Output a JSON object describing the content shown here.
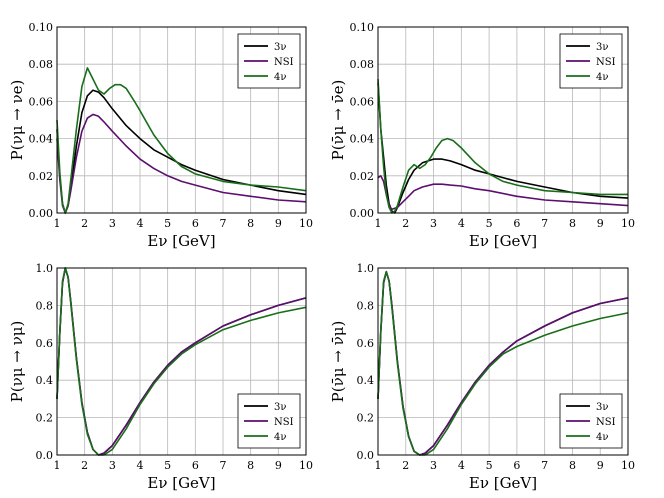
{
  "colors": {
    "3nu": "#000000",
    "NSI": "#5c0f6e",
    "4nu": "#1a6e1a"
  },
  "chart_data": [
    {
      "type": "line",
      "ylabel": "P(νμ → νe)",
      "xlabel": "Eν [GeV]",
      "xlim": [
        1,
        10
      ],
      "ylim": [
        0,
        0.1
      ],
      "xticks": [
        "1",
        "2",
        "3",
        "4",
        "5",
        "6",
        "7",
        "8",
        "9",
        "10"
      ],
      "yticks": [
        "0.00",
        "0.02",
        "0.04",
        "0.06",
        "0.08",
        "0.10"
      ],
      "legend_position": "top-right",
      "series": [
        {
          "name": "3ν",
          "key": "3nu",
          "x": [
            1.0,
            1.1,
            1.2,
            1.3,
            1.4,
            1.5,
            1.7,
            1.9,
            2.1,
            2.3,
            2.5,
            2.7,
            3.0,
            3.5,
            4.0,
            4.5,
            5.0,
            5.5,
            6.0,
            7.0,
            8.0,
            9.0,
            10.0
          ],
          "y": [
            0.045,
            0.02,
            0.005,
            0.0,
            0.004,
            0.014,
            0.036,
            0.054,
            0.063,
            0.066,
            0.065,
            0.062,
            0.056,
            0.047,
            0.04,
            0.034,
            0.03,
            0.026,
            0.023,
            0.018,
            0.015,
            0.012,
            0.01
          ]
        },
        {
          "name": "NSI",
          "key": "NSI",
          "x": [
            1.0,
            1.1,
            1.2,
            1.3,
            1.4,
            1.5,
            1.7,
            1.9,
            2.1,
            2.3,
            2.5,
            2.7,
            3.0,
            3.5,
            4.0,
            4.5,
            5.0,
            5.5,
            6.0,
            7.0,
            8.0,
            9.0,
            10.0
          ],
          "y": [
            0.04,
            0.018,
            0.004,
            0.0,
            0.004,
            0.012,
            0.03,
            0.044,
            0.051,
            0.053,
            0.052,
            0.049,
            0.044,
            0.036,
            0.029,
            0.024,
            0.02,
            0.017,
            0.015,
            0.011,
            0.009,
            0.007,
            0.006
          ]
        },
        {
          "name": "4ν",
          "key": "4nu",
          "x": [
            1.0,
            1.1,
            1.2,
            1.3,
            1.4,
            1.5,
            1.7,
            1.9,
            2.1,
            2.3,
            2.5,
            2.7,
            2.9,
            3.1,
            3.3,
            3.5,
            3.8,
            4.0,
            4.5,
            5.0,
            5.5,
            6.0,
            7.0,
            8.0,
            9.0,
            10.0
          ],
          "y": [
            0.05,
            0.022,
            0.005,
            0.0,
            0.005,
            0.018,
            0.045,
            0.068,
            0.078,
            0.072,
            0.066,
            0.064,
            0.067,
            0.069,
            0.069,
            0.067,
            0.06,
            0.055,
            0.042,
            0.032,
            0.025,
            0.021,
            0.017,
            0.015,
            0.014,
            0.012
          ]
        }
      ]
    },
    {
      "type": "line",
      "ylabel": "P(ν̄μ → ν̄e)",
      "xlabel": "Eν [GeV]",
      "xlim": [
        1,
        10
      ],
      "ylim": [
        0,
        0.1
      ],
      "xticks": [
        "1",
        "2",
        "3",
        "4",
        "5",
        "6",
        "7",
        "8",
        "9",
        "10"
      ],
      "yticks": [
        "0.00",
        "0.02",
        "0.04",
        "0.06",
        "0.08",
        "0.10"
      ],
      "legend_position": "top-right",
      "series": [
        {
          "name": "3ν",
          "key": "3nu",
          "x": [
            1.0,
            1.1,
            1.2,
            1.3,
            1.4,
            1.5,
            1.6,
            1.7,
            1.9,
            2.1,
            2.3,
            2.6,
            3.0,
            3.3,
            3.6,
            4.0,
            4.5,
            5.0,
            6.0,
            7.0,
            8.0,
            9.0,
            10.0
          ],
          "y": [
            0.07,
            0.045,
            0.03,
            0.015,
            0.005,
            0.001,
            0.0,
            0.003,
            0.011,
            0.018,
            0.023,
            0.027,
            0.029,
            0.029,
            0.028,
            0.026,
            0.023,
            0.021,
            0.017,
            0.014,
            0.011,
            0.009,
            0.008
          ]
        },
        {
          "name": "NSI",
          "key": "NSI",
          "x": [
            1.0,
            1.1,
            1.2,
            1.3,
            1.4,
            1.5,
            1.7,
            1.9,
            2.1,
            2.3,
            2.6,
            3.0,
            3.3,
            3.6,
            4.0,
            4.5,
            5.0,
            6.0,
            7.0,
            8.0,
            9.0,
            10.0
          ],
          "y": [
            0.019,
            0.02,
            0.017,
            0.01,
            0.004,
            0.002,
            0.003,
            0.006,
            0.009,
            0.012,
            0.014,
            0.0155,
            0.0155,
            0.015,
            0.0145,
            0.013,
            0.012,
            0.009,
            0.007,
            0.006,
            0.005,
            0.004
          ]
        },
        {
          "name": "4ν",
          "key": "4nu",
          "x": [
            1.0,
            1.1,
            1.2,
            1.3,
            1.4,
            1.5,
            1.6,
            1.7,
            1.9,
            2.1,
            2.3,
            2.5,
            2.7,
            2.9,
            3.1,
            3.3,
            3.5,
            3.7,
            4.0,
            4.5,
            5.0,
            5.5,
            6.0,
            7.0,
            8.0,
            9.0,
            10.0
          ],
          "y": [
            0.072,
            0.045,
            0.025,
            0.01,
            0.003,
            0.0,
            0.001,
            0.004,
            0.014,
            0.023,
            0.026,
            0.024,
            0.026,
            0.03,
            0.035,
            0.039,
            0.04,
            0.039,
            0.035,
            0.027,
            0.021,
            0.017,
            0.015,
            0.012,
            0.011,
            0.01,
            0.01
          ]
        }
      ]
    },
    {
      "type": "line",
      "ylabel": "P(νμ → νμ)",
      "xlabel": "Eν [GeV]",
      "xlim": [
        1,
        10
      ],
      "ylim": [
        0,
        1.0
      ],
      "xticks": [
        "1",
        "2",
        "3",
        "4",
        "5",
        "6",
        "7",
        "8",
        "9",
        "10"
      ],
      "yticks": [
        "0.0",
        "0.2",
        "0.4",
        "0.6",
        "0.8",
        "1.0"
      ],
      "legend_position": "bottom-right",
      "series": [
        {
          "name": "3ν",
          "key": "3nu",
          "x": [
            1.0,
            1.1,
            1.2,
            1.3,
            1.4,
            1.5,
            1.7,
            1.9,
            2.1,
            2.3,
            2.5,
            2.7,
            3.0,
            3.5,
            4.0,
            4.5,
            5.0,
            5.5,
            6.0,
            7.0,
            8.0,
            9.0,
            10.0
          ],
          "y": [
            0.3,
            0.65,
            0.92,
            1.0,
            0.95,
            0.82,
            0.52,
            0.28,
            0.12,
            0.03,
            0.0,
            0.01,
            0.05,
            0.16,
            0.28,
            0.39,
            0.48,
            0.55,
            0.6,
            0.69,
            0.75,
            0.8,
            0.84
          ]
        },
        {
          "name": "NSI",
          "key": "NSI",
          "x": [
            1.0,
            1.1,
            1.2,
            1.3,
            1.4,
            1.5,
            1.7,
            1.9,
            2.1,
            2.3,
            2.5,
            2.7,
            3.0,
            3.5,
            4.0,
            4.5,
            5.0,
            5.5,
            6.0,
            7.0,
            8.0,
            9.0,
            10.0
          ],
          "y": [
            0.3,
            0.65,
            0.92,
            1.0,
            0.95,
            0.82,
            0.52,
            0.28,
            0.12,
            0.03,
            0.0,
            0.01,
            0.05,
            0.16,
            0.28,
            0.39,
            0.48,
            0.55,
            0.6,
            0.69,
            0.75,
            0.8,
            0.84
          ]
        },
        {
          "name": "4ν",
          "key": "4nu",
          "x": [
            1.0,
            1.1,
            1.2,
            1.3,
            1.4,
            1.5,
            1.7,
            1.9,
            2.1,
            2.3,
            2.5,
            2.7,
            3.0,
            3.5,
            4.0,
            4.5,
            5.0,
            5.5,
            6.0,
            7.0,
            8.0,
            9.0,
            10.0
          ],
          "y": [
            0.3,
            0.66,
            0.93,
            1.0,
            0.95,
            0.81,
            0.51,
            0.27,
            0.11,
            0.03,
            0.0,
            0.0,
            0.03,
            0.14,
            0.27,
            0.38,
            0.47,
            0.54,
            0.59,
            0.67,
            0.72,
            0.76,
            0.79
          ]
        }
      ]
    },
    {
      "type": "line",
      "ylabel": "P(ν̄μ → ν̄μ)",
      "xlabel": "Eν [GeV]",
      "xlim": [
        1,
        10
      ],
      "ylim": [
        0,
        1.0
      ],
      "xticks": [
        "1",
        "2",
        "3",
        "4",
        "5",
        "6",
        "7",
        "8",
        "9",
        "10"
      ],
      "yticks": [
        "0.0",
        "0.2",
        "0.4",
        "0.6",
        "0.8",
        "1.0"
      ],
      "legend_position": "bottom-right",
      "series": [
        {
          "name": "3ν",
          "key": "3nu",
          "x": [
            1.0,
            1.1,
            1.2,
            1.3,
            1.4,
            1.5,
            1.7,
            1.9,
            2.1,
            2.3,
            2.5,
            2.7,
            3.0,
            3.5,
            4.0,
            4.5,
            5.0,
            5.5,
            6.0,
            7.0,
            8.0,
            9.0,
            10.0
          ],
          "y": [
            0.3,
            0.66,
            0.92,
            0.98,
            0.93,
            0.8,
            0.5,
            0.26,
            0.1,
            0.02,
            0.0,
            0.01,
            0.05,
            0.16,
            0.28,
            0.39,
            0.48,
            0.55,
            0.61,
            0.69,
            0.76,
            0.81,
            0.84
          ]
        },
        {
          "name": "NSI",
          "key": "NSI",
          "x": [
            1.0,
            1.1,
            1.2,
            1.3,
            1.4,
            1.5,
            1.7,
            1.9,
            2.1,
            2.3,
            2.5,
            2.7,
            3.0,
            3.5,
            4.0,
            4.5,
            5.0,
            5.5,
            6.0,
            7.0,
            8.0,
            9.0,
            10.0
          ],
          "y": [
            0.3,
            0.66,
            0.92,
            0.98,
            0.93,
            0.8,
            0.5,
            0.26,
            0.1,
            0.02,
            0.0,
            0.01,
            0.05,
            0.16,
            0.28,
            0.39,
            0.48,
            0.55,
            0.61,
            0.69,
            0.76,
            0.81,
            0.84
          ]
        },
        {
          "name": "4ν",
          "key": "4nu",
          "x": [
            1.0,
            1.1,
            1.2,
            1.3,
            1.4,
            1.5,
            1.7,
            1.9,
            2.1,
            2.3,
            2.5,
            2.7,
            3.0,
            3.5,
            4.0,
            4.5,
            5.0,
            5.5,
            6.0,
            7.0,
            8.0,
            9.0,
            10.0
          ],
          "y": [
            0.3,
            0.67,
            0.93,
            0.98,
            0.93,
            0.79,
            0.49,
            0.25,
            0.1,
            0.02,
            0.0,
            0.0,
            0.03,
            0.14,
            0.27,
            0.38,
            0.47,
            0.54,
            0.58,
            0.64,
            0.69,
            0.73,
            0.76
          ]
        }
      ]
    }
  ]
}
